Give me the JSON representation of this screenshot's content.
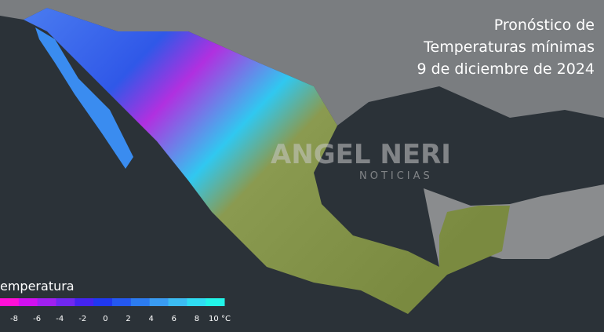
{
  "title": [
    "Pronóstico de",
    "Temperaturas mínimas",
    "9 de diciembre de 2024"
  ],
  "watermark": {
    "brand": "ANGEL NERI",
    "sub": "NOTICIAS"
  },
  "legend": {
    "title": "emperatura",
    "colors": [
      "#ff10d8",
      "#d010f0",
      "#a020f0",
      "#7028f0",
      "#4424f0",
      "#2038f0",
      "#2458f0",
      "#2c7cf0",
      "#3a9cf2",
      "#3cbcf2",
      "#30dcf2",
      "#22f4e8"
    ],
    "ticks": [
      -8,
      -6,
      -4,
      -2,
      0,
      2,
      4,
      6,
      8,
      {
        "value": 10,
        "label": "10 °C"
      }
    ]
  }
}
